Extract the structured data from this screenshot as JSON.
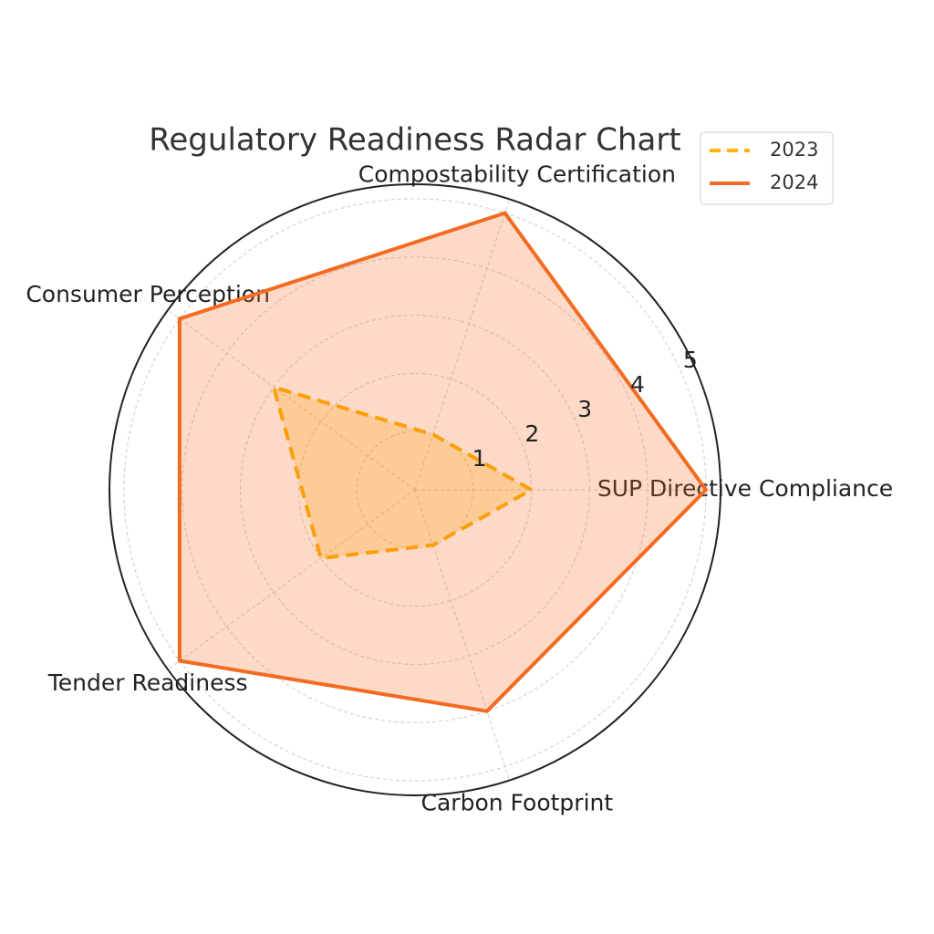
{
  "chart_data": {
    "type": "radar",
    "title": "Regulatory Readiness Radar Chart",
    "categories": [
      "SUP Directive Compliance",
      "Compostability Certification",
      "Consumer Perception",
      "Tender Readiness",
      "Carbon Footprint"
    ],
    "series": [
      {
        "name": "2023",
        "color": "#ffb000",
        "line_style": "dashed",
        "values": [
          2,
          1,
          3,
          2,
          1
        ]
      },
      {
        "name": "2024",
        "color": "#f26b21",
        "line_style": "solid",
        "values": [
          5,
          5,
          5,
          5,
          4
        ]
      }
    ],
    "ylim": [
      0,
      5.25
    ],
    "yticks": [
      1,
      2,
      3,
      4,
      5
    ],
    "grid": true,
    "legend": "upper right"
  }
}
